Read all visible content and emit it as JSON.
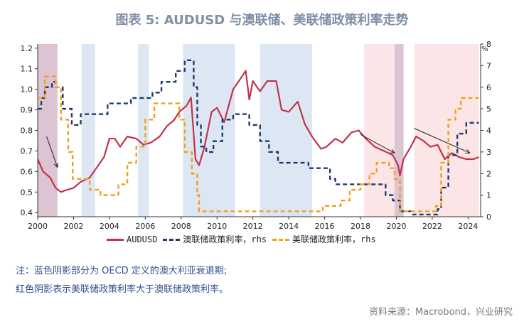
{
  "title": "图表 5: AUDUSD 与澳联储、美联储政策利率走势",
  "notes": {
    "line1": "注：蓝色阴影部分为 OECD 定义的澳大利亚衰退期;",
    "line2": "红色阴影表示美联储政策利率大于澳联储政策利率。"
  },
  "source": "资料来源：Macrobond，兴业研究",
  "colors": {
    "audusd": "#c0344a",
    "rba": "#1f3a6e",
    "fed": "#f0a020",
    "blue_shade": "#dde7f3",
    "red_shade": "#fbe0e3"
  },
  "chart_data": {
    "type": "line",
    "title": "图表 5: AUDUSD 与澳联储、美联储政策利率走势",
    "left_axis": {
      "ylim": [
        0.38,
        1.22
      ],
      "ticks": [
        "0.4",
        "0.5",
        "0.6",
        "0.7",
        "0.8",
        "0.9",
        "1.0",
        "1.1",
        "1.2"
      ]
    },
    "right_axis": {
      "ylim": [
        0,
        8
      ],
      "ticks": [
        "0",
        "1",
        "2",
        "3",
        "4",
        "5",
        "6",
        "7",
        "8"
      ],
      "unit": "%"
    },
    "x_axis": {
      "xlim": [
        2000,
        2024.7
      ],
      "ticks": [
        "2000",
        "2002",
        "2004",
        "2006",
        "2008",
        "2010",
        "2012",
        "2014",
        "2016",
        "2018",
        "2020",
        "2022",
        "2024"
      ]
    },
    "legend_placement": "bottom",
    "series": [
      {
        "name": "AUDUSD",
        "axis": "left",
        "style": "solid",
        "points": [
          [
            2000.0,
            0.66
          ],
          [
            2000.3,
            0.6
          ],
          [
            2000.7,
            0.57
          ],
          [
            2001.0,
            0.52
          ],
          [
            2001.3,
            0.5
          ],
          [
            2001.6,
            0.51
          ],
          [
            2002.0,
            0.52
          ],
          [
            2002.4,
            0.55
          ],
          [
            2002.9,
            0.57
          ],
          [
            2003.3,
            0.62
          ],
          [
            2003.7,
            0.67
          ],
          [
            2004.0,
            0.76
          ],
          [
            2004.3,
            0.76
          ],
          [
            2004.6,
            0.72
          ],
          [
            2005.0,
            0.77
          ],
          [
            2005.5,
            0.76
          ],
          [
            2005.9,
            0.73
          ],
          [
            2006.3,
            0.74
          ],
          [
            2006.8,
            0.77
          ],
          [
            2007.2,
            0.82
          ],
          [
            2007.6,
            0.85
          ],
          [
            2007.9,
            0.89
          ],
          [
            2008.3,
            0.92
          ],
          [
            2008.55,
            0.96
          ],
          [
            2008.8,
            0.66
          ],
          [
            2009.0,
            0.63
          ],
          [
            2009.3,
            0.72
          ],
          [
            2009.7,
            0.89
          ],
          [
            2010.0,
            0.91
          ],
          [
            2010.4,
            0.84
          ],
          [
            2010.9,
            1.0
          ],
          [
            2011.3,
            1.05
          ],
          [
            2011.6,
            1.09
          ],
          [
            2011.8,
            0.95
          ],
          [
            2012.0,
            1.04
          ],
          [
            2012.4,
            0.99
          ],
          [
            2012.8,
            1.04
          ],
          [
            2013.3,
            1.04
          ],
          [
            2013.6,
            0.9
          ],
          [
            2014.0,
            0.89
          ],
          [
            2014.5,
            0.94
          ],
          [
            2014.9,
            0.83
          ],
          [
            2015.3,
            0.77
          ],
          [
            2015.8,
            0.71
          ],
          [
            2016.1,
            0.72
          ],
          [
            2016.6,
            0.76
          ],
          [
            2017.0,
            0.74
          ],
          [
            2017.5,
            0.79
          ],
          [
            2017.9,
            0.8
          ],
          [
            2018.3,
            0.76
          ],
          [
            2018.8,
            0.72
          ],
          [
            2019.3,
            0.7
          ],
          [
            2019.8,
            0.68
          ],
          [
            2020.1,
            0.63
          ],
          [
            2020.2,
            0.58
          ],
          [
            2020.4,
            0.66
          ],
          [
            2020.8,
            0.72
          ],
          [
            2021.1,
            0.77
          ],
          [
            2021.5,
            0.75
          ],
          [
            2021.9,
            0.72
          ],
          [
            2022.3,
            0.73
          ],
          [
            2022.7,
            0.66
          ],
          [
            2023.1,
            0.69
          ],
          [
            2023.5,
            0.67
          ],
          [
            2023.9,
            0.66
          ],
          [
            2024.3,
            0.66
          ],
          [
            2024.6,
            0.67
          ]
        ]
      },
      {
        "name": "澳联储政策利率，rhs",
        "axis": "right",
        "style": "dashed",
        "points": [
          [
            2000.0,
            5.0
          ],
          [
            2000.2,
            5.5
          ],
          [
            2000.4,
            6.0
          ],
          [
            2000.8,
            6.25
          ],
          [
            2001.0,
            6.0
          ],
          [
            2001.4,
            5.0
          ],
          [
            2001.9,
            4.25
          ],
          [
            2002.4,
            4.75
          ],
          [
            2003.9,
            5.25
          ],
          [
            2005.2,
            5.5
          ],
          [
            2006.4,
            5.75
          ],
          [
            2006.9,
            6.25
          ],
          [
            2007.7,
            6.75
          ],
          [
            2008.2,
            7.25
          ],
          [
            2008.7,
            6.0
          ],
          [
            2008.9,
            4.25
          ],
          [
            2009.1,
            3.25
          ],
          [
            2009.4,
            3.0
          ],
          [
            2009.8,
            3.5
          ],
          [
            2010.3,
            4.5
          ],
          [
            2010.9,
            4.75
          ],
          [
            2011.8,
            4.25
          ],
          [
            2012.4,
            3.5
          ],
          [
            2012.9,
            3.0
          ],
          [
            2013.4,
            2.5
          ],
          [
            2015.1,
            2.25
          ],
          [
            2016.3,
            1.75
          ],
          [
            2016.6,
            1.5
          ],
          [
            2019.4,
            1.0
          ],
          [
            2019.8,
            0.75
          ],
          [
            2020.2,
            0.25
          ],
          [
            2020.9,
            0.1
          ],
          [
            2022.3,
            0.35
          ],
          [
            2022.5,
            1.35
          ],
          [
            2022.9,
            2.85
          ],
          [
            2023.4,
            3.85
          ],
          [
            2023.9,
            4.35
          ],
          [
            2024.6,
            4.35
          ]
        ]
      },
      {
        "name": "美联储政策利率，rhs",
        "axis": "right",
        "style": "dashed",
        "points": [
          [
            2000.0,
            5.5
          ],
          [
            2000.4,
            6.5
          ],
          [
            2001.0,
            6.0
          ],
          [
            2001.3,
            4.5
          ],
          [
            2001.7,
            3.0
          ],
          [
            2001.95,
            1.75
          ],
          [
            2002.9,
            1.25
          ],
          [
            2003.5,
            1.0
          ],
          [
            2004.5,
            1.5
          ],
          [
            2005.0,
            2.5
          ],
          [
            2005.5,
            3.25
          ],
          [
            2006.0,
            4.5
          ],
          [
            2006.5,
            5.25
          ],
          [
            2007.6,
            5.25
          ],
          [
            2007.9,
            4.5
          ],
          [
            2008.2,
            3.0
          ],
          [
            2008.6,
            2.0
          ],
          [
            2008.9,
            1.0
          ],
          [
            2009.0,
            0.25
          ],
          [
            2015.9,
            0.5
          ],
          [
            2016.9,
            0.75
          ],
          [
            2017.4,
            1.25
          ],
          [
            2018.0,
            1.5
          ],
          [
            2018.5,
            2.0
          ],
          [
            2018.9,
            2.5
          ],
          [
            2019.6,
            2.25
          ],
          [
            2019.9,
            1.75
          ],
          [
            2020.2,
            0.25
          ],
          [
            2022.2,
            0.5
          ],
          [
            2022.5,
            2.5
          ],
          [
            2022.9,
            4.5
          ],
          [
            2023.3,
            5.0
          ],
          [
            2023.6,
            5.5
          ],
          [
            2024.6,
            5.5
          ]
        ]
      }
    ],
    "blue_shading_periods": [
      [
        2000.0,
        2001.1
      ],
      [
        2002.45,
        2003.2
      ],
      [
        2005.6,
        2006.2
      ],
      [
        2008.1,
        2011.0
      ],
      [
        2012.4,
        2015.3
      ],
      [
        2019.9,
        2020.4
      ]
    ],
    "red_shading_periods": [
      [
        2000.0,
        2001.1
      ],
      [
        2018.2,
        2020.4
      ],
      [
        2021.0,
        2024.6
      ]
    ]
  }
}
